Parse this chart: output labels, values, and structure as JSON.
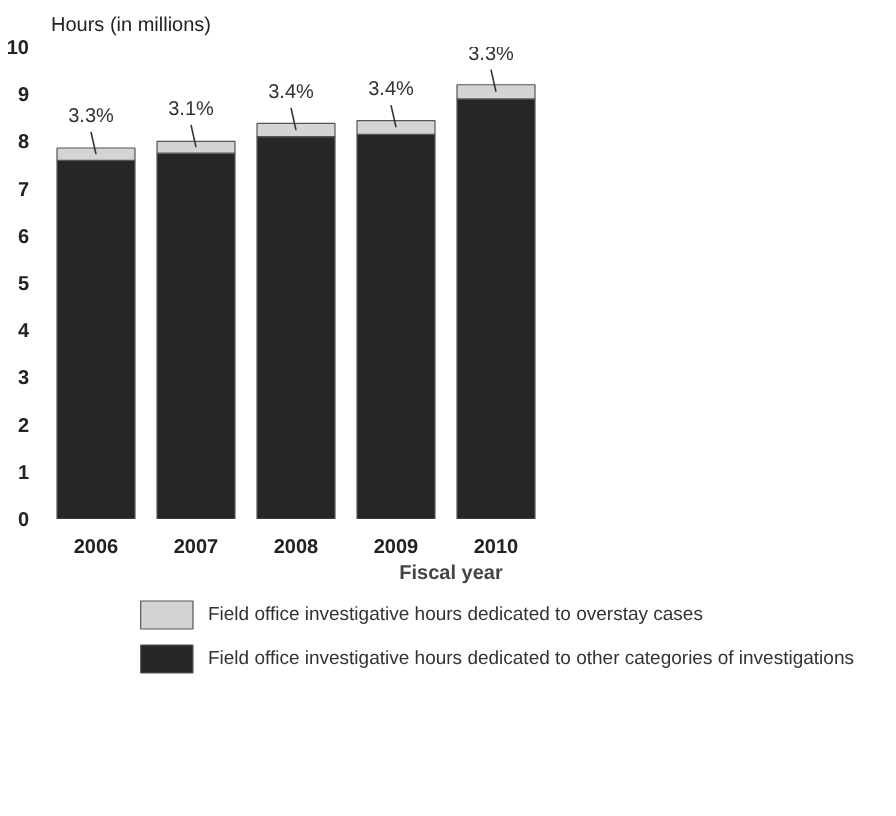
{
  "chart_data": {
    "type": "bar",
    "stacked": true,
    "ylabel": "Hours (in millions)",
    "xlabel": "Fiscal year",
    "categories": [
      "2006",
      "2007",
      "2008",
      "2009",
      "2010"
    ],
    "series": [
      {
        "name": "Field office investigative hours dedicated to other categories of investigations",
        "color": "#262626",
        "values": [
          7.6,
          7.75,
          8.1,
          8.15,
          8.9
        ]
      },
      {
        "name": "Field office investigative hours dedicated to overstay cases",
        "color": "#d4d4d4",
        "values": [
          0.26,
          0.25,
          0.28,
          0.29,
          0.3
        ]
      }
    ],
    "annotations": [
      {
        "text": "3.3%",
        "x": "2006",
        "y": 7.73
      },
      {
        "text": "3.1%",
        "x": "2007",
        "y": 7.88
      },
      {
        "text": "3.4%",
        "x": "2008",
        "y": 8.24
      },
      {
        "text": "3.4%",
        "x": "2009",
        "y": 8.3
      },
      {
        "text": "3.3%",
        "x": "2010",
        "y": 9.05
      }
    ],
    "ylim": [
      0,
      10
    ],
    "yticks": [
      0,
      1,
      2,
      3,
      4,
      5,
      6,
      7,
      8,
      9,
      10
    ],
    "grid": false,
    "legend": "bottom"
  }
}
